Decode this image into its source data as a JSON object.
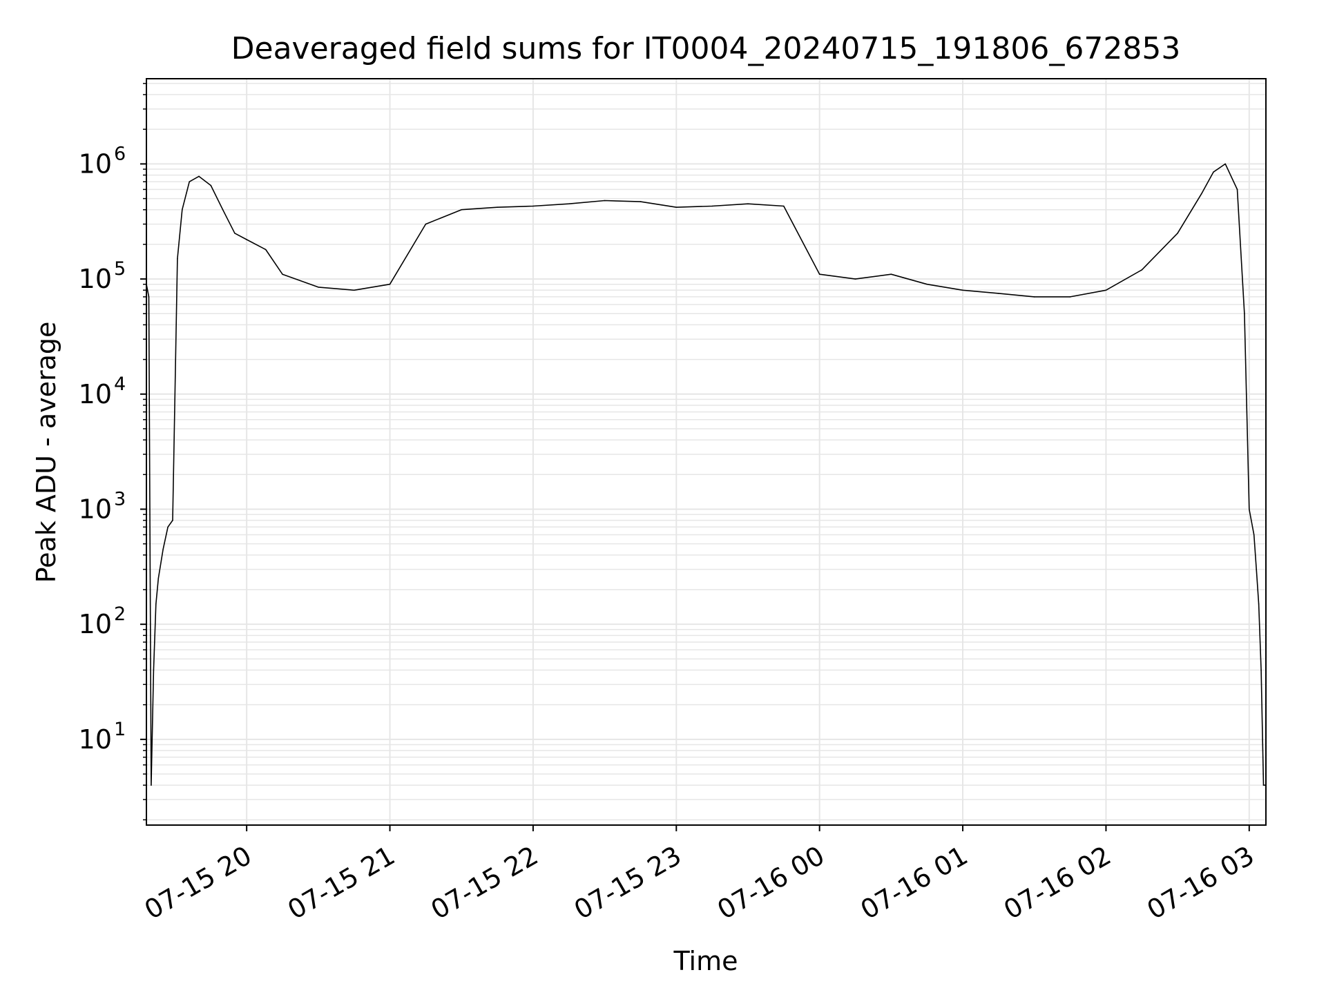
{
  "chart_data": {
    "type": "line",
    "title": "Deaveraged field sums for IT0004_20240715_191806_672853",
    "xlabel": "Time",
    "ylabel": "Peak ADU - average",
    "yscale": "log",
    "ylim": [
      1.8,
      5500000
    ],
    "xlim": [
      "2024-07-15 19:18",
      "2024-07-16 03:07"
    ],
    "x_ticks": [
      {
        "value": "2024-07-15 20:00",
        "label": "07-15 20"
      },
      {
        "value": "2024-07-15 21:00",
        "label": "07-15 21"
      },
      {
        "value": "2024-07-15 22:00",
        "label": "07-15 22"
      },
      {
        "value": "2024-07-15 23:00",
        "label": "07-15 23"
      },
      {
        "value": "2024-07-16 00:00",
        "label": "07-16 00"
      },
      {
        "value": "2024-07-16 01:00",
        "label": "07-16 01"
      },
      {
        "value": "2024-07-16 02:00",
        "label": "07-16 02"
      },
      {
        "value": "2024-07-16 03:00",
        "label": "07-16 03"
      }
    ],
    "y_ticks": [
      {
        "value": 10,
        "base": "10",
        "exp": "1"
      },
      {
        "value": 100,
        "base": "10",
        "exp": "2"
      },
      {
        "value": 1000,
        "base": "10",
        "exp": "3"
      },
      {
        "value": 10000,
        "base": "10",
        "exp": "4"
      },
      {
        "value": 100000,
        "base": "10",
        "exp": "5"
      },
      {
        "value": 1000000,
        "base": "10",
        "exp": "6"
      }
    ],
    "grid": true,
    "line_color": "#000000",
    "grid_color": "#e6e6e6",
    "series": [
      {
        "x": [
          "2024-07-15 19:18",
          "2024-07-15 19:19",
          "2024-07-15 19:20",
          "2024-07-15 19:21",
          "2024-07-15 19:22",
          "2024-07-15 19:23",
          "2024-07-15 19:25",
          "2024-07-15 19:27",
          "2024-07-15 19:29",
          "2024-07-15 19:31",
          "2024-07-15 19:33",
          "2024-07-15 19:36",
          "2024-07-15 19:40",
          "2024-07-15 19:45",
          "2024-07-15 19:50",
          "2024-07-15 19:55",
          "2024-07-15 20:00",
          "2024-07-15 20:08",
          "2024-07-15 20:15",
          "2024-07-15 20:30",
          "2024-07-15 20:45",
          "2024-07-15 21:00",
          "2024-07-15 21:15",
          "2024-07-15 21:30",
          "2024-07-15 21:45",
          "2024-07-15 22:00",
          "2024-07-15 22:15",
          "2024-07-15 22:30",
          "2024-07-15 22:45",
          "2024-07-15 23:00",
          "2024-07-15 23:15",
          "2024-07-15 23:30",
          "2024-07-15 23:45",
          "2024-07-16 00:00",
          "2024-07-16 00:15",
          "2024-07-16 00:30",
          "2024-07-16 00:45",
          "2024-07-16 01:00",
          "2024-07-16 01:15",
          "2024-07-16 01:30",
          "2024-07-16 01:45",
          "2024-07-16 02:00",
          "2024-07-16 02:15",
          "2024-07-16 02:30",
          "2024-07-16 02:40",
          "2024-07-16 02:45",
          "2024-07-16 02:50",
          "2024-07-16 02:55",
          "2024-07-16 02:58",
          "2024-07-16 03:00",
          "2024-07-16 03:02",
          "2024-07-16 03:03",
          "2024-07-16 03:04",
          "2024-07-16 03:05",
          "2024-07-16 03:06",
          "2024-07-16 03:07"
        ],
        "y": [
          90000,
          70000,
          4,
          40,
          150,
          250,
          450,
          700,
          800,
          150000,
          400000,
          700000,
          780000,
          650000,
          400000,
          250000,
          220000,
          180000,
          110000,
          85000,
          80000,
          90000,
          300000,
          400000,
          420000,
          430000,
          450000,
          480000,
          470000,
          420000,
          430000,
          450000,
          430000,
          110000,
          100000,
          110000,
          90000,
          80000,
          75000,
          70000,
          70000,
          80000,
          120000,
          250000,
          550000,
          850000,
          1000000,
          600000,
          50000,
          1000,
          600,
          300,
          150,
          40,
          4,
          4
        ]
      }
    ]
  }
}
